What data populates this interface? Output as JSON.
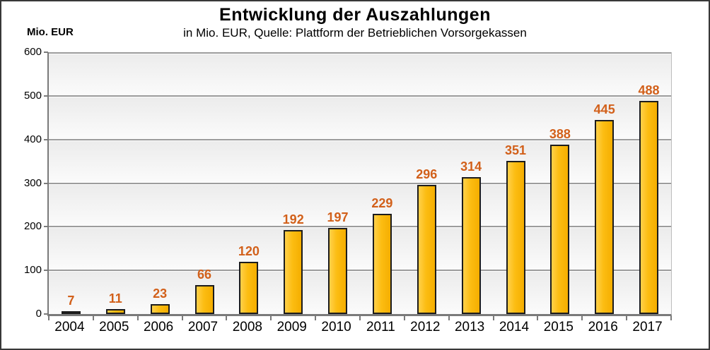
{
  "frame": {
    "title": "Entwicklung der Auszahlungen",
    "subtitle": "in Mio. EUR, Quelle: Plattform der Betrieblichen Vorsorgekassen",
    "unit_label": "Mio. EUR"
  },
  "chart_data": {
    "type": "bar",
    "title": "Entwicklung der Auszahlungen",
    "subtitle": "in Mio. EUR, Quelle: Plattform der Betrieblichen Vorsorgekassen",
    "categories": [
      "2004",
      "2005",
      "2006",
      "2007",
      "2008",
      "2009",
      "2010",
      "2011",
      "2012",
      "2013",
      "2014",
      "2015",
      "2016",
      "2017"
    ],
    "values": [
      7,
      11,
      23,
      66,
      120,
      192,
      197,
      229,
      296,
      314,
      351,
      388,
      445,
      488
    ],
    "value_labels_shown": true,
    "xlabel": "",
    "ylabel": "Mio. EUR",
    "ylim": [
      0,
      600
    ],
    "yticks": [
      0,
      100,
      200,
      300,
      400,
      500,
      600
    ],
    "grid": true,
    "legend_position": "none",
    "colors": {
      "bar_fill": "#FCBD12",
      "bar_border": "#1C1C1C",
      "value_label": "#D2601A",
      "axis": "#7A7A7A",
      "gridline": "#9C9C9C",
      "plot_background_top": "#EBEBEB",
      "plot_background_bottom": "#FBFBFB",
      "text": "#000000",
      "frame_border": "#383838"
    }
  }
}
